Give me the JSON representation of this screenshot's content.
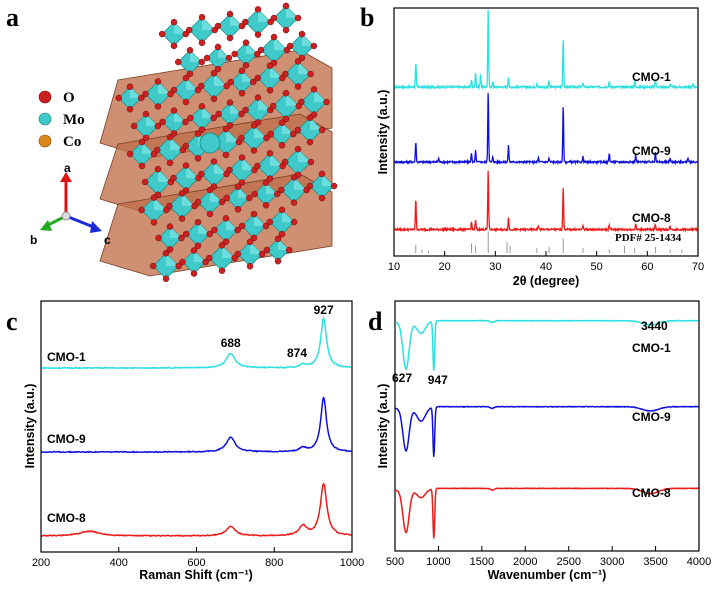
{
  "panel_a": {
    "letter": "a",
    "legend": [
      {
        "label": "O",
        "color": "#cc1f1f"
      },
      {
        "label": "Mo",
        "color": "#3fc9c9"
      },
      {
        "label": "Co",
        "color": "#d9861c"
      }
    ],
    "axes": {
      "a": "a",
      "b": "b",
      "c": "c"
    }
  },
  "chart_data": [
    {
      "id": "b",
      "letter": "b",
      "type": "line",
      "title": "",
      "xlabel": "2θ (degree)",
      "ylabel": "Intensity (a.u.)",
      "xlim": [
        10,
        70
      ],
      "xticks": [
        10,
        20,
        30,
        40,
        50,
        60,
        70
      ],
      "series": [
        {
          "name": "CMO-1",
          "color": "#2de0e0",
          "offset": 2.0,
          "peaks": [
            [
              14.3,
              0.32
            ],
            [
              25.3,
              0.1
            ],
            [
              26.1,
              0.2
            ],
            [
              27.1,
              0.18
            ],
            [
              28.6,
              1.05
            ],
            [
              29.5,
              0.08
            ],
            [
              32.6,
              0.14
            ],
            [
              38.2,
              0.05
            ],
            [
              40.6,
              0.09
            ],
            [
              43.4,
              0.65
            ],
            [
              47.3,
              0.06
            ],
            [
              52.5,
              0.07
            ],
            [
              57.5,
              0.08
            ],
            [
              61.6,
              0.1
            ],
            [
              64.5,
              0.04
            ],
            [
              69.0,
              0.04
            ]
          ]
        },
        {
          "name": "CMO-9",
          "color": "#1010dd",
          "offset": 1.0,
          "peaks": [
            [
              14.3,
              0.28
            ],
            [
              18.8,
              0.05
            ],
            [
              25.3,
              0.12
            ],
            [
              26.1,
              0.15
            ],
            [
              28.6,
              0.95
            ],
            [
              29.5,
              0.07
            ],
            [
              32.6,
              0.22
            ],
            [
              38.5,
              0.06
            ],
            [
              40.6,
              0.05
            ],
            [
              43.4,
              0.75
            ],
            [
              47.3,
              0.07
            ],
            [
              52.5,
              0.12
            ],
            [
              57.7,
              0.1
            ],
            [
              61.6,
              0.14
            ],
            [
              64.5,
              0.05
            ],
            [
              68.0,
              0.06
            ]
          ]
        },
        {
          "name": "CMO-8",
          "color": "#ee1b1b",
          "offset": 0.1,
          "peaks": [
            [
              14.3,
              0.42
            ],
            [
              25.3,
              0.1
            ],
            [
              26.1,
              0.12
            ],
            [
              28.6,
              0.8
            ],
            [
              32.6,
              0.16
            ],
            [
              38.5,
              0.05
            ],
            [
              43.4,
              0.58
            ],
            [
              47.3,
              0.05
            ],
            [
              52.5,
              0.06
            ],
            [
              57.7,
              0.08
            ],
            [
              61.6,
              0.07
            ],
            [
              64.5,
              0.04
            ]
          ]
        }
      ],
      "reference": {
        "label": "PDF# 25-1434",
        "sticks": [
          [
            14.3,
            0.35
          ],
          [
            15.5,
            0.15
          ],
          [
            16.8,
            0.1
          ],
          [
            25.3,
            0.4
          ],
          [
            26.1,
            0.3
          ],
          [
            28.6,
            0.9
          ],
          [
            32.3,
            0.45
          ],
          [
            32.9,
            0.3
          ],
          [
            38.2,
            0.2
          ],
          [
            40.6,
            0.25
          ],
          [
            43.4,
            0.6
          ],
          [
            47.3,
            0.2
          ],
          [
            52.5,
            0.15
          ],
          [
            55.5,
            0.3
          ],
          [
            57.5,
            0.2
          ],
          [
            61.6,
            0.25
          ],
          [
            64.5,
            0.15
          ],
          [
            66.8,
            0.15
          ]
        ]
      }
    },
    {
      "id": "c",
      "letter": "c",
      "type": "line",
      "title": "",
      "xlabel": "Raman Shift (cm⁻¹)",
      "ylabel": "Intensity (a.u.)",
      "xlim": [
        200,
        1000
      ],
      "xticks": [
        200,
        400,
        600,
        800,
        1000
      ],
      "annotations": [
        {
          "label": "688",
          "x": 688
        },
        {
          "label": "874",
          "x": 874
        },
        {
          "label": "927",
          "x": 927
        }
      ],
      "series": [
        {
          "name": "CMO-1",
          "color": "#2de0e0",
          "offset": 2.15,
          "peaks": [
            [
              688,
              0.18,
              14
            ],
            [
              874,
              0.04,
              10
            ],
            [
              927,
              0.62,
              9
            ]
          ]
        },
        {
          "name": "CMO-9",
          "color": "#1010dd",
          "offset": 1.1,
          "peaks": [
            [
              688,
              0.18,
              14
            ],
            [
              874,
              0.05,
              10
            ],
            [
              927,
              0.68,
              9
            ]
          ]
        },
        {
          "name": "CMO-8",
          "color": "#ee1b1b",
          "offset": 0.05,
          "peaks": [
            [
              325,
              0.06,
              30
            ],
            [
              688,
              0.12,
              14
            ],
            [
              874,
              0.12,
              12
            ],
            [
              927,
              0.65,
              10
            ]
          ]
        }
      ]
    },
    {
      "id": "d",
      "letter": "d",
      "type": "line",
      "title": "",
      "xlabel": "Wavenumber (cm⁻¹)",
      "ylabel": "Intensity (a.u.)",
      "xlim": [
        500,
        4000
      ],
      "xticks": [
        500,
        1000,
        1500,
        2000,
        2500,
        3000,
        3500,
        4000
      ],
      "annotations": [
        {
          "label": "627",
          "x": 627
        },
        {
          "label": "947",
          "x": 947
        },
        {
          "label": "3440",
          "x": 3440
        }
      ],
      "series": [
        {
          "name": "CMO-1",
          "color": "#2de0e0",
          "top": 2.55,
          "dips": [
            [
              627,
              0.55,
              50
            ],
            [
              947,
              0.58,
              14
            ],
            [
              800,
              0.14,
              70
            ],
            [
              3440,
              0.05,
              130
            ],
            [
              1620,
              0.02,
              30
            ]
          ]
        },
        {
          "name": "CMO-9",
          "color": "#1010dd",
          "top": 1.55,
          "dips": [
            [
              627,
              0.5,
              50
            ],
            [
              947,
              0.58,
              14
            ],
            [
              800,
              0.16,
              70
            ],
            [
              3440,
              0.05,
              130
            ],
            [
              1620,
              0.02,
              30
            ]
          ]
        },
        {
          "name": "CMO-8",
          "color": "#ee1b1b",
          "top": 0.6,
          "dips": [
            [
              627,
              0.5,
              50
            ],
            [
              947,
              0.58,
              14
            ],
            [
              800,
              0.1,
              70
            ],
            [
              3440,
              0.06,
              130
            ],
            [
              1620,
              0.02,
              30
            ]
          ]
        }
      ]
    }
  ]
}
